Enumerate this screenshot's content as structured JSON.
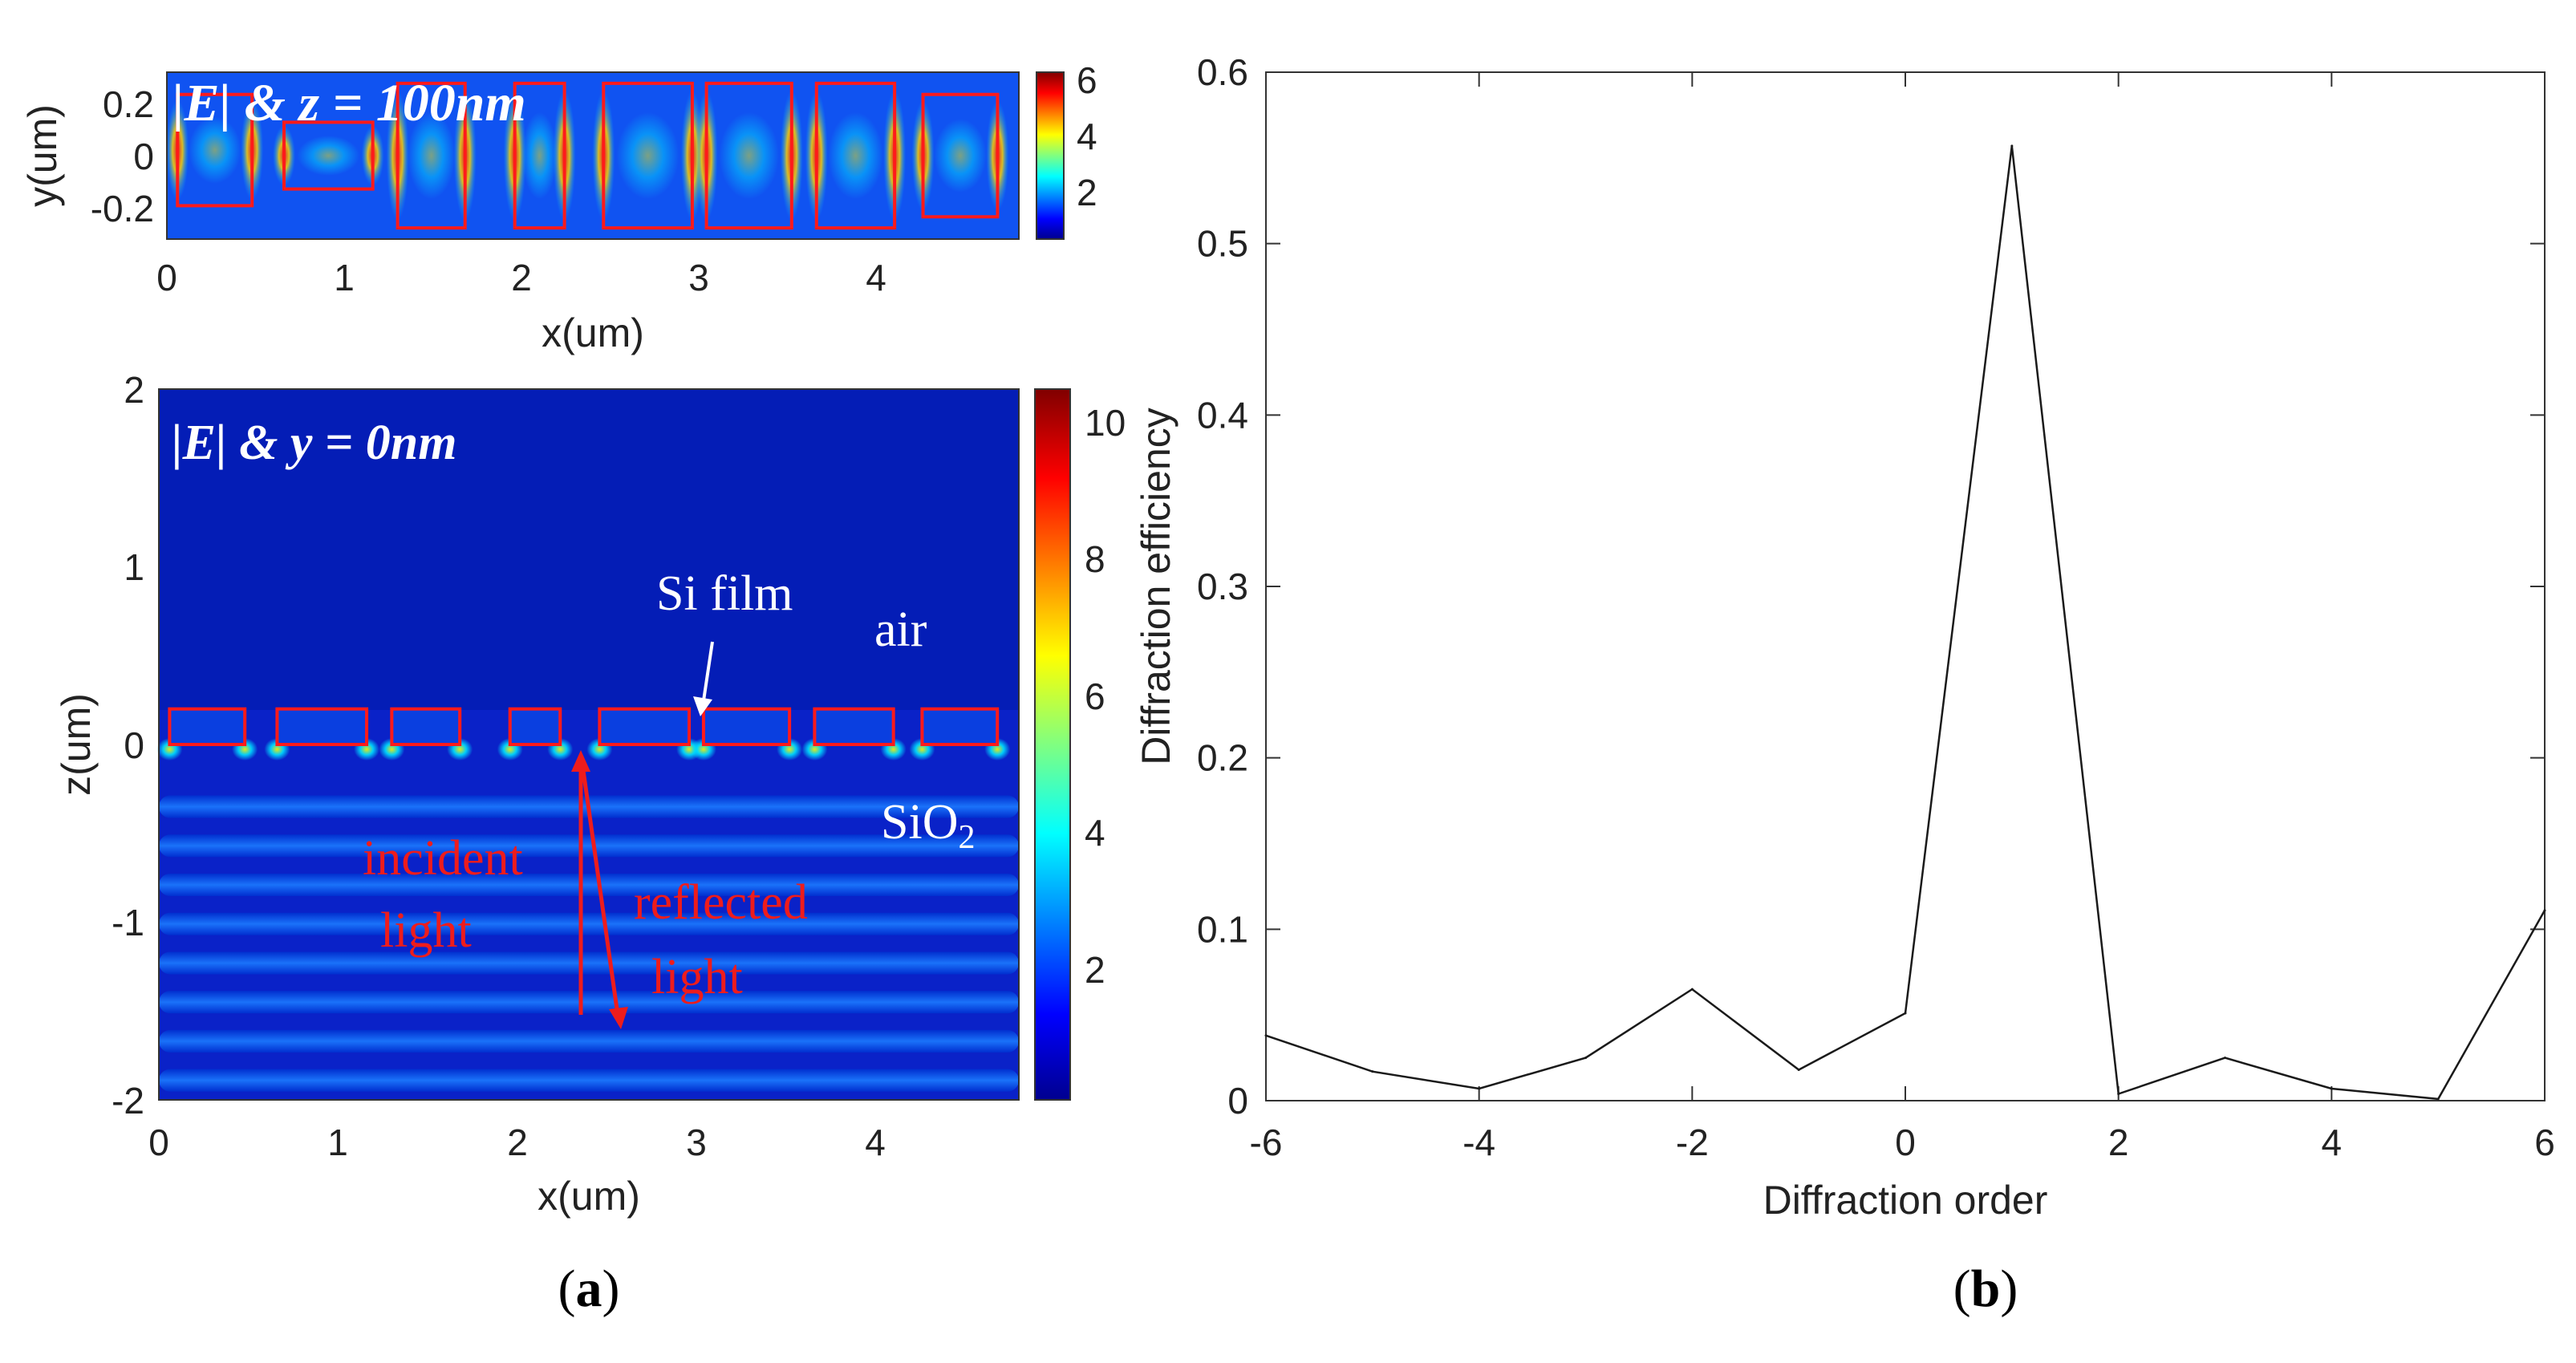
{
  "chart_data": [
    {
      "type": "heatmap",
      "panel": "a-top",
      "annotation": "|E| & z = 100nm",
      "xlabel": "x(um)",
      "ylabel": "y(um)",
      "xlim": [
        0,
        4.8
      ],
      "ylim": [
        -0.3,
        0.3
      ],
      "xticks": [
        "0",
        "1",
        "2",
        "3",
        "4"
      ],
      "yticks": [
        "0.2",
        "0",
        "-0.2"
      ],
      "colorbar": {
        "min": 0.5,
        "max": 6.2,
        "ticks": [
          "6",
          "4",
          "2"
        ]
      },
      "pillars_x_um": [
        [
          0.06,
          0.48
        ],
        [
          0.66,
          1.16
        ],
        [
          1.3,
          1.68
        ],
        [
          1.96,
          2.24
        ],
        [
          2.46,
          2.96
        ],
        [
          3.04,
          3.52
        ],
        [
          3.66,
          4.1
        ],
        [
          4.26,
          4.68
        ]
      ],
      "pillars_y_um": [
        [
          -0.18,
          0.22
        ],
        [
          -0.12,
          0.12
        ],
        [
          -0.26,
          0.26
        ],
        [
          -0.26,
          0.26
        ],
        [
          -0.26,
          0.26
        ],
        [
          -0.26,
          0.26
        ],
        [
          -0.26,
          0.26
        ],
        [
          -0.22,
          0.22
        ]
      ]
    },
    {
      "type": "heatmap",
      "panel": "a-bottom",
      "annotation": "|E| & y = 0nm",
      "xlabel": "x(um)",
      "ylabel": "z(um)",
      "xlim": [
        0,
        4.8
      ],
      "ylim": [
        -2,
        2
      ],
      "xticks": [
        "0",
        "1",
        "2",
        "3",
        "4"
      ],
      "yticks": [
        "2",
        "1",
        "0",
        "-1",
        "-2"
      ],
      "colorbar": {
        "min": 0.5,
        "max": 10.6,
        "ticks": [
          "10",
          "8",
          "6",
          "4",
          "2"
        ]
      },
      "labels": {
        "si_film": "Si film",
        "air": "air",
        "sio2": "SiO",
        "sio2_sub": "2",
        "incident_1": "incident",
        "incident_2": "light",
        "reflected_1": "reflected",
        "reflected_2": "light"
      }
    },
    {
      "type": "line",
      "panel": "b",
      "xlabel": "Diffraction order",
      "ylabel": "Diffraction efficiency",
      "xlim": [
        -6,
        6
      ],
      "ylim": [
        0,
        0.6
      ],
      "xticks": [
        "-6",
        "-4",
        "-2",
        "0",
        "2",
        "4",
        "6"
      ],
      "yticks": [
        "0",
        "0.1",
        "0.2",
        "0.3",
        "0.4",
        "0.5",
        "0.6"
      ],
      "x": [
        -6,
        -5,
        -4,
        -3,
        -2,
        -1,
        0,
        1,
        2,
        3,
        4,
        5,
        6
      ],
      "y": [
        0.038,
        0.017,
        0.007,
        0.025,
        0.065,
        0.018,
        0.051,
        0.557,
        0.004,
        0.025,
        0.007,
        0.001,
        0.111
      ]
    }
  ],
  "captions": {
    "a": "a",
    "b": "b"
  }
}
